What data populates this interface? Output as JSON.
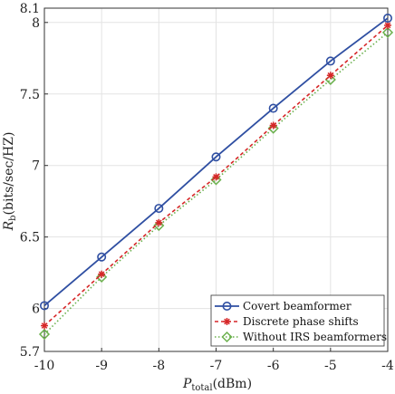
{
  "chart_data": {
    "type": "line",
    "xlabel": {
      "main": "P",
      "sub": "total",
      "unit": "(dBm)"
    },
    "ylabel": {
      "main": "R",
      "sub": "b",
      "unit": "(bits/sec/HZ)"
    },
    "xlim": [
      -10,
      -4
    ],
    "ylim": [
      5.7,
      8.1
    ],
    "x_ticks": [
      "-10",
      "-9",
      "-8",
      "-7",
      "-6",
      "-5",
      "-4"
    ],
    "y_ticks": [
      "5.7",
      "6",
      "6.5",
      "7",
      "7.5",
      "8",
      "8.1"
    ],
    "grid": true,
    "legend_position": "bottom-right",
    "x": [
      -10,
      -9,
      -8,
      -7,
      -6,
      -5,
      -4
    ],
    "series": [
      {
        "name": "Covert beamformer",
        "values": [
          6.02,
          6.36,
          6.7,
          7.06,
          7.4,
          7.73,
          8.03
        ],
        "color": "#2f4fa2",
        "line": "solid",
        "marker": "circle"
      },
      {
        "name": "Discrete phase shifts",
        "values": [
          5.88,
          6.24,
          6.6,
          6.92,
          7.28,
          7.63,
          7.98
        ],
        "color": "#d62728",
        "line": "dashed",
        "marker": "asterisk"
      },
      {
        "name": "Without IRS beamformers",
        "values": [
          5.82,
          6.22,
          6.58,
          6.9,
          7.26,
          7.6,
          7.93
        ],
        "color": "#6ab04c",
        "line": "dotted",
        "marker": "diamond"
      }
    ]
  }
}
